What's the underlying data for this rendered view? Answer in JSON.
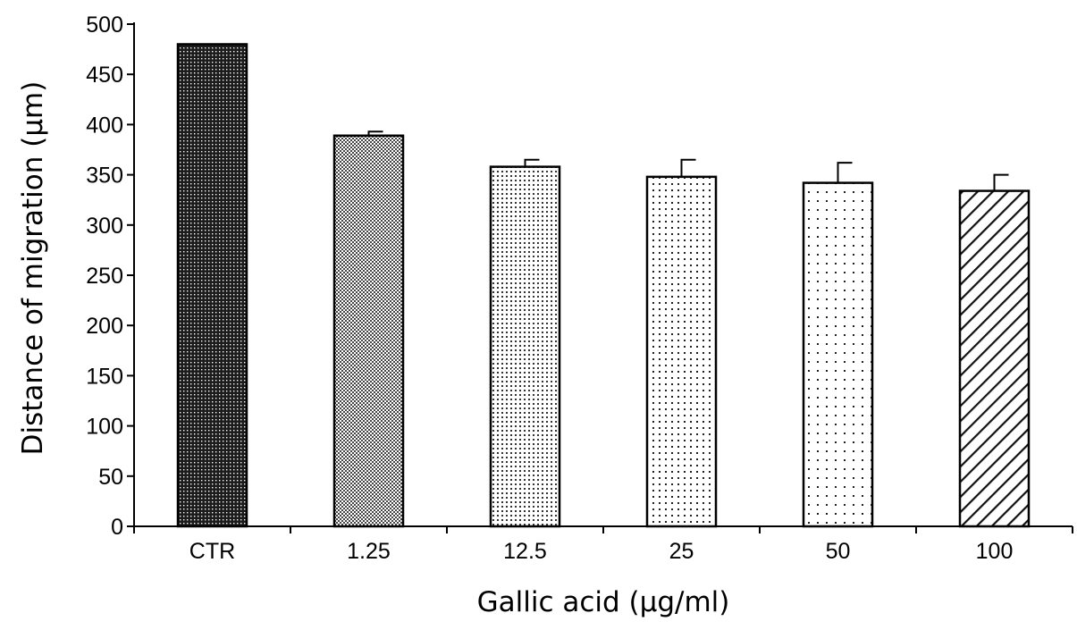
{
  "chart_data": {
    "type": "bar",
    "xlabel": "Gallic acid (µg/ml)",
    "ylabel": "Distance of migration (µm)",
    "categories": [
      "CTR",
      "1.25",
      "12.5",
      "25",
      "50",
      "100"
    ],
    "values": [
      480,
      389,
      358,
      348,
      342,
      334
    ],
    "error_upper": [
      0,
      4,
      7,
      17,
      20,
      16
    ],
    "ylim": [
      0,
      500
    ],
    "yticks": [
      "0",
      "50",
      "100",
      "150",
      "200",
      "250",
      "300",
      "350",
      "400",
      "450",
      "500"
    ],
    "patterns": [
      "dense-dark-dots",
      "fine-checker",
      "medium-dots",
      "small-dots",
      "sparse-dots",
      "diagonal-stripes"
    ],
    "grid": false,
    "legend": "none",
    "colors": {
      "bar_edge": "#000000",
      "background": "#ffffff",
      "axis": "#000000"
    }
  }
}
